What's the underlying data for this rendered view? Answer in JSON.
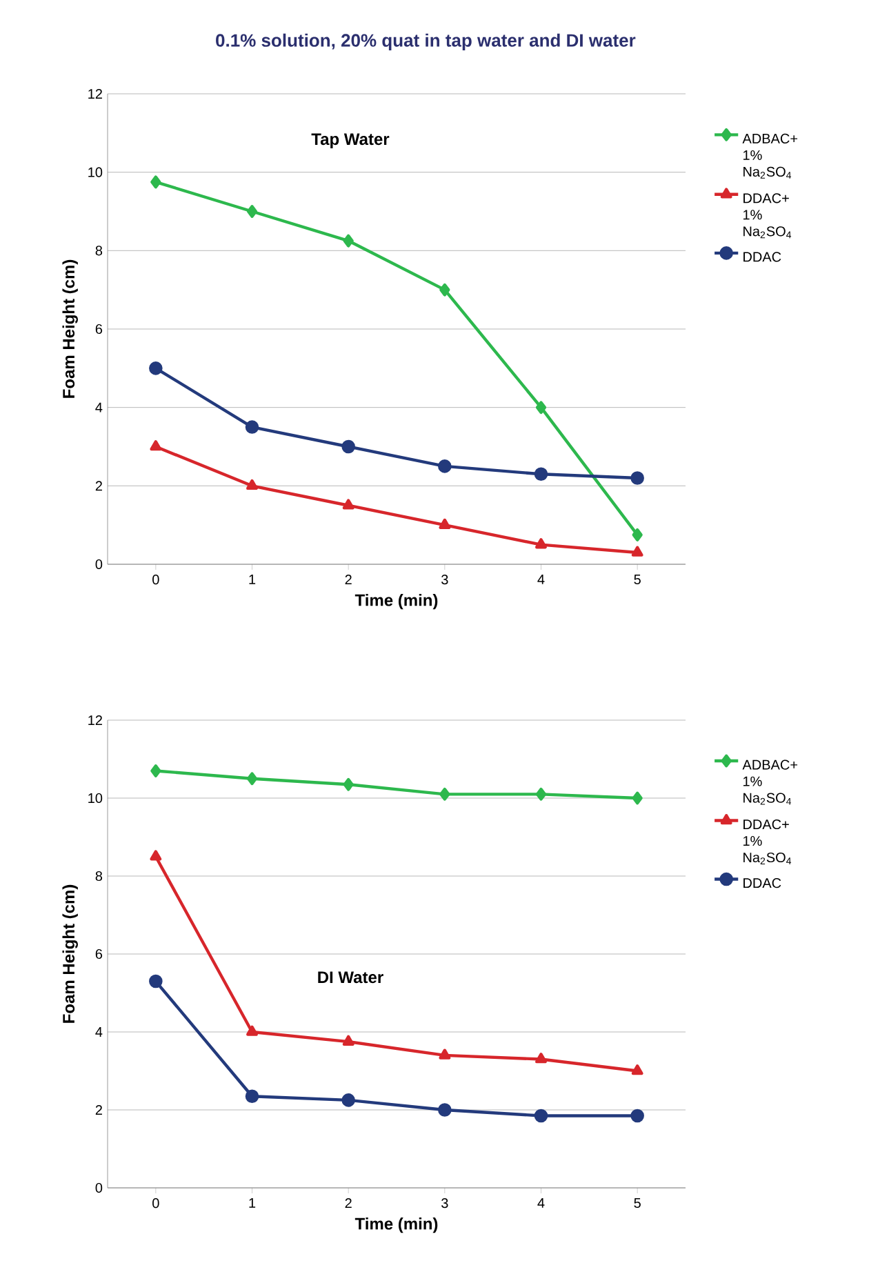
{
  "chart_data": [
    {
      "type": "line",
      "title": "0.1% solution, 20% quat in tap water and DI water",
      "xlabel": "Time (min)",
      "ylabel": "Foam Height (cm)",
      "annotations": [
        "Tap Water"
      ],
      "x": [
        0,
        1,
        2,
        3,
        4,
        5
      ],
      "xlim": [
        -0.5,
        5.5
      ],
      "xticks": [
        0,
        1,
        2,
        3,
        4,
        5
      ],
      "ylim": [
        0,
        12
      ],
      "yticks": [
        0,
        2,
        4,
        6,
        8,
        10,
        12
      ],
      "grid": "y",
      "legend": "right",
      "series": [
        {
          "name": "ADBAC+ 1% Na$_{2}$SO$_{4}$",
          "color": "#2db84d",
          "marker": "diamond",
          "values": [
            9.75,
            9.0,
            8.25,
            7.0,
            4.0,
            0.75
          ]
        },
        {
          "name": "DDAC+ 1% Na$_{2}$SO$_{4}$",
          "color": "#d7262b",
          "marker": "triangle",
          "values": [
            3.0,
            2.0,
            1.5,
            1.0,
            0.5,
            0.3
          ]
        },
        {
          "name": "DDAC",
          "color": "#233a7c",
          "marker": "circle",
          "values": [
            5.0,
            3.5,
            3.0,
            2.5,
            2.3,
            2.2
          ]
        }
      ]
    },
    {
      "type": "line",
      "xlabel": "Time (min)",
      "ylabel": "Foam Height (cm)",
      "annotations": [
        "DI Water"
      ],
      "x": [
        0,
        1,
        2,
        3,
        4,
        5
      ],
      "xlim": [
        -0.5,
        5.5
      ],
      "xticks": [
        0,
        1,
        2,
        3,
        4,
        5
      ],
      "ylim": [
        0,
        12
      ],
      "yticks": [
        0,
        2,
        4,
        6,
        8,
        10,
        12
      ],
      "grid": "y",
      "legend": "right",
      "series": [
        {
          "name": "ADBAC+ 1% Na$_{2}$SO$_{4}$",
          "color": "#2db84d",
          "marker": "diamond",
          "values": [
            10.7,
            10.5,
            10.35,
            10.1,
            10.1,
            10.0
          ]
        },
        {
          "name": "DDAC+ 1% Na$_{2}$SO$_{4}$",
          "color": "#d7262b",
          "marker": "triangle",
          "values": [
            8.5,
            4.0,
            3.75,
            3.4,
            3.3,
            3.0
          ]
        },
        {
          "name": "DDAC",
          "color": "#233a7c",
          "marker": "circle",
          "values": [
            5.3,
            2.35,
            2.25,
            2.0,
            1.85,
            1.85
          ]
        }
      ]
    }
  ]
}
